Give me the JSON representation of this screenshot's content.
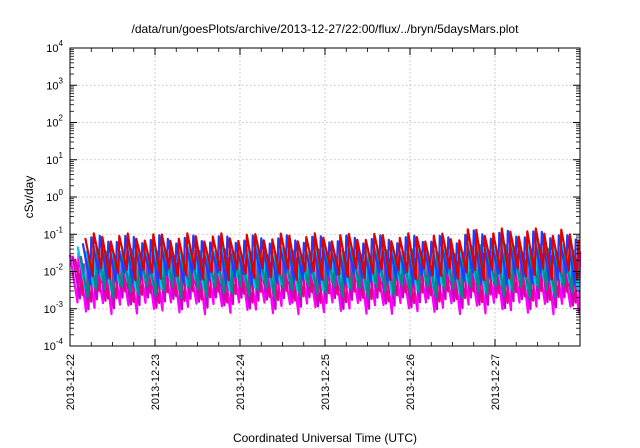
{
  "chart_data": {
    "type": "line",
    "title": "/data/run/goesPlots/archive/2013-12-27/22:00/flux/../bryn/5daysMars.plot",
    "xlabel": "Coordinated Universal Time (UTC)",
    "ylabel": "cSv/day",
    "yscale": "log",
    "ylim": [
      0.0001,
      10000
    ],
    "yticks": [
      {
        "base": "10",
        "exp": "-4"
      },
      {
        "base": "10",
        "exp": "-3"
      },
      {
        "base": "10",
        "exp": "-2"
      },
      {
        "base": "10",
        "exp": "-1"
      },
      {
        "base": "10",
        "exp": "0"
      },
      {
        "base": "10",
        "exp": "1"
      },
      {
        "base": "10",
        "exp": "2"
      },
      {
        "base": "10",
        "exp": "3"
      },
      {
        "base": "10",
        "exp": "4"
      }
    ],
    "xticks": [
      "2013-12-22",
      "2013-12-23",
      "2013-12-24",
      "2013-12-25",
      "2013-12-26",
      "2013-12-27"
    ],
    "xlim": [
      "2013-12-22",
      "2013-12-28"
    ],
    "grid": true,
    "cycles_per_day": 10,
    "series": [
      {
        "color": "#ff00ff",
        "peak": 0.028,
        "trough": 0.0011
      },
      {
        "color": "#cc00cc",
        "peak": 0.022,
        "trough": 0.0015
      },
      {
        "color": "#e8008a",
        "peak": 0.018,
        "trough": 0.0022
      },
      {
        "color": "#00c8ff",
        "peak": 0.045,
        "trough": 0.0045
      },
      {
        "color": "#008b8b",
        "peak": 0.032,
        "trough": 0.003
      },
      {
        "color": "#1e3cff",
        "peak": 0.075,
        "trough": 0.007
      },
      {
        "color": "#e00000",
        "peak": 0.085,
        "trough": 0.009
      }
    ]
  }
}
